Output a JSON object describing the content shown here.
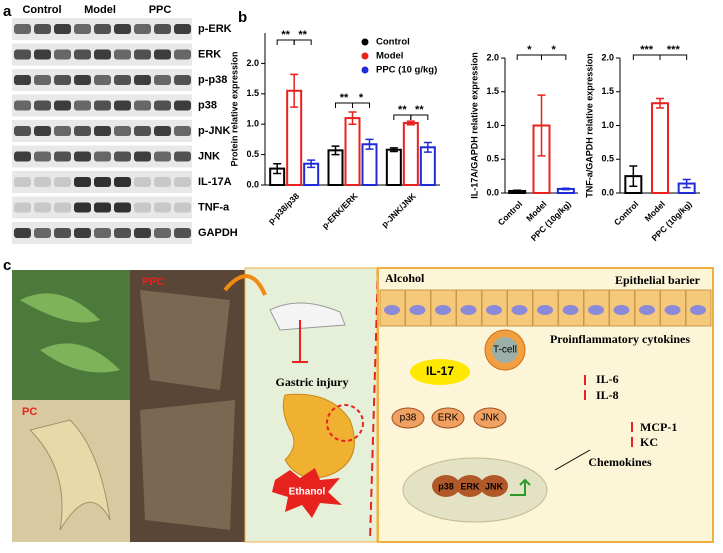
{
  "blot": {
    "label": "a",
    "groups": [
      "Control",
      "Model",
      "PPC"
    ],
    "rows": [
      "p-ERK",
      "ERK",
      "p-p38",
      "p38",
      "p-JNK",
      "JNK",
      "IL-17A",
      "TNF-a",
      "GAPDH"
    ]
  },
  "panel_b_label": "b",
  "chart_data": [
    {
      "type": "bar",
      "ylabel": "Protein relative expression",
      "categories": [
        "p-p38/p38",
        "p-ERK/ERK",
        "p-JNK/JNK"
      ],
      "series": [
        {
          "name": "Control",
          "color": "#000000",
          "values": [
            0.27,
            0.57,
            0.58
          ],
          "errors": [
            0.08,
            0.07,
            0.03
          ]
        },
        {
          "name": "Model",
          "color": "#e8221e",
          "values": [
            1.55,
            1.1,
            1.02
          ],
          "errors": [
            0.27,
            0.1,
            0.03
          ]
        },
        {
          "name": "PPC (10 g/kg)",
          "color": "#1f2bd6",
          "values": [
            0.35,
            0.67,
            0.62
          ],
          "errors": [
            0.06,
            0.08,
            0.08
          ]
        }
      ],
      "ylim": [
        0,
        2.5
      ],
      "yticks": [
        {
          "value": 0,
          "label": "0.0"
        },
        {
          "value": 0.5,
          "label": "0.5"
        },
        {
          "value": 1,
          "label": "1.0"
        },
        {
          "value": 1.5,
          "label": "1.5"
        },
        {
          "value": 2,
          "label": "2.0"
        }
      ],
      "annotations": [
        "**",
        "**",
        "**",
        "*",
        "**",
        "**"
      ]
    },
    {
      "type": "bar",
      "ylabel": "IL-17A/GAPDH relative expression",
      "categories": [
        "Control",
        "Model",
        "PPC (10g/kg)"
      ],
      "values": [
        0.03,
        1.0,
        0.06
      ],
      "errors": [
        0.01,
        0.45,
        0.01
      ],
      "colors": [
        "#000000",
        "#e8221e",
        "#1f2bd6"
      ],
      "ylim": [
        0,
        2
      ],
      "yticks": [
        {
          "value": 0,
          "label": "0.0"
        },
        {
          "value": 0.5,
          "label": "0.5"
        },
        {
          "value": 1,
          "label": "1.0"
        },
        {
          "value": 1.5,
          "label": "1.5"
        },
        {
          "value": 2,
          "label": "2.0"
        }
      ],
      "annotations": [
        "*",
        "*"
      ]
    },
    {
      "type": "bar",
      "ylabel": "TNF-a/GAPDH relative expression",
      "categories": [
        "Control",
        "Model",
        "PPC (10g/kg)"
      ],
      "values": [
        0.25,
        1.33,
        0.14
      ],
      "errors": [
        0.15,
        0.07,
        0.06
      ],
      "colors": [
        "#000000",
        "#e8221e",
        "#1f2bd6"
      ],
      "ylim": [
        0,
        2
      ],
      "yticks": [
        {
          "value": 0,
          "label": "0.0"
        },
        {
          "value": 0.5,
          "label": "0.5"
        },
        {
          "value": 1,
          "label": "1.0"
        },
        {
          "value": 1.5,
          "label": "1.5"
        },
        {
          "value": 2,
          "label": "2.0"
        }
      ],
      "annotations": [
        "***",
        "***"
      ]
    }
  ],
  "diagram": {
    "label": "c",
    "pc": "PC",
    "ppc": "PPC",
    "gastric": "Gastric injury",
    "ethanol": "Ethanol",
    "alcohol": "Alcohol",
    "barrier": "Epithelial barier",
    "tcell": "T-cell",
    "il17": "IL-17",
    "kinases": [
      "p38",
      "ERK",
      "JNK"
    ],
    "cytokines": "Proinflammatory cytokines",
    "il6": "IL-6",
    "il8": "IL-8",
    "mcp1": "MCP-1",
    "kc": "KC",
    "chemokines": "Chemokines",
    "nuclear": [
      "p38",
      "ERK",
      "JNK"
    ]
  }
}
